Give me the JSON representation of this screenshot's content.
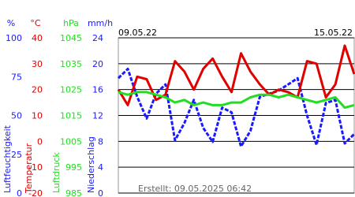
{
  "chart_data": {
    "type": "line",
    "x_start_label": "09.05.22",
    "x_end_label": "15.05.22",
    "footer": "Erstellt: 09.05.2025 06:42",
    "grid": true,
    "axes": [
      {
        "label": "Luftfeuchtigkeit",
        "unit": "%",
        "color": "#1a1aff",
        "dashed": true,
        "ylim": [
          0,
          100
        ],
        "yticks": [
          0,
          25,
          50,
          75,
          100
        ],
        "values": [
          74,
          80,
          62,
          48,
          64,
          70,
          34,
          45,
          60,
          42,
          33,
          55,
          52,
          30,
          40,
          62,
          64,
          66,
          70,
          74,
          50,
          31,
          58,
          60,
          32,
          38
        ]
      },
      {
        "label": "Temperatur",
        "unit": "°C",
        "color": "#e00000",
        "dashed": false,
        "ylim": [
          -20,
          40
        ],
        "yticks": [
          -20,
          -10,
          0,
          10,
          20,
          30,
          40
        ],
        "values": [
          20,
          14,
          25,
          24,
          16,
          18,
          31,
          27,
          20,
          28,
          32,
          25,
          19,
          34,
          27,
          22,
          18,
          20,
          19,
          17,
          31,
          30,
          17,
          22,
          37,
          26
        ]
      },
      {
        "label": "Luftdruck",
        "unit": "hPa",
        "color": "#22dd22",
        "dashed": false,
        "ylim": [
          985,
          1045
        ],
        "yticks": [
          985,
          995,
          1005,
          1015,
          1025,
          1035,
          1045
        ],
        "values": [
          1024,
          1023,
          1024,
          1024,
          1023,
          1022,
          1020,
          1021,
          1019,
          1020,
          1019,
          1019,
          1020,
          1020,
          1022,
          1023,
          1023,
          1022,
          1023,
          1022,
          1021,
          1020,
          1021,
          1022,
          1018,
          1019
        ]
      },
      {
        "label": "Niederschlag",
        "unit": "mm/h",
        "color": "#1a1aff",
        "dashed": false,
        "ylim": [
          0,
          24
        ],
        "yticks": [
          0,
          4,
          8,
          12,
          16,
          20,
          24
        ]
      }
    ]
  }
}
